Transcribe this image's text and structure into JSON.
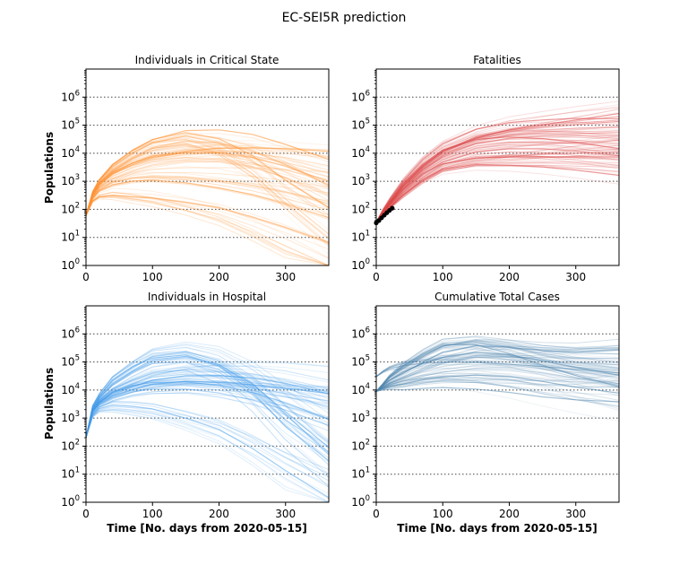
{
  "figure": {
    "title": "EC-SEI5R prediction"
  },
  "chart_data": [
    {
      "type": "line",
      "title": "Individuals in Critical State",
      "xlabel": "",
      "ylabel": "Populations",
      "xlim": [
        0,
        365
      ],
      "ylim": [
        1,
        10000000
      ],
      "yscale": "log",
      "grid": "horizontal dotted at each decade",
      "color": "#ff7f0e",
      "x_ticks": [
        "0",
        "100",
        "200",
        "300"
      ],
      "y_ticks": [
        "10^0",
        "10^1",
        "10^2",
        "10^3",
        "10^4",
        "10^5",
        "10^6"
      ],
      "x": [
        0,
        10,
        20,
        40,
        70,
        100,
        150,
        200,
        250,
        300,
        365
      ],
      "series": [
        {
          "values": [
            60,
            300,
            700,
            1500,
            3000,
            5000,
            8000,
            9000,
            7000,
            4000,
            1500
          ]
        },
        {
          "values": [
            60,
            350,
            900,
            2500,
            7000,
            15000,
            25000,
            20000,
            10000,
            3000,
            500
          ]
        },
        {
          "values": [
            60,
            250,
            500,
            900,
            1300,
            1500,
            1400,
            1100,
            800,
            500,
            250
          ]
        },
        {
          "values": [
            60,
            200,
            300,
            350,
            300,
            250,
            150,
            80,
            30,
            10,
            2
          ]
        },
        {
          "values": [
            60,
            400,
            1000,
            3000,
            9000,
            20000,
            30000,
            15000,
            3000,
            300,
            20
          ]
        },
        {
          "values": [
            60,
            300,
            700,
            1800,
            4000,
            7000,
            10000,
            12000,
            11000,
            9000,
            6000
          ]
        }
      ]
    },
    {
      "type": "line",
      "title": "Fatalities",
      "xlabel": "",
      "ylabel": "",
      "xlim": [
        0,
        365
      ],
      "ylim": [
        1,
        10000000
      ],
      "yscale": "log",
      "grid": "horizontal dotted at each decade",
      "color": "#d62728",
      "observed_color": "#000000",
      "x_ticks": [
        "0",
        "100",
        "200",
        "300"
      ],
      "y_ticks": [
        "10^0",
        "10^1",
        "10^2",
        "10^3",
        "10^4",
        "10^5",
        "10^6"
      ],
      "x": [
        0,
        10,
        20,
        40,
        70,
        100,
        150,
        200,
        250,
        300,
        365
      ],
      "series": [
        {
          "values": [
            35,
            70,
            130,
            400,
            1500,
            3500,
            6000,
            7000,
            7500,
            7500,
            7500
          ]
        },
        {
          "values": [
            35,
            80,
            160,
            600,
            3000,
            9000,
            25000,
            40000,
            50000,
            55000,
            55000
          ]
        },
        {
          "values": [
            35,
            90,
            200,
            800,
            4500,
            15000,
            45000,
            75000,
            90000,
            100000,
            100000
          ]
        },
        {
          "values": [
            35,
            75,
            140,
            500,
            2000,
            6000,
            15000,
            22000,
            25000,
            26000,
            26000
          ]
        },
        {
          "values": [
            35,
            85,
            180,
            700,
            3500,
            12000,
            35000,
            55000,
            65000,
            70000,
            70000
          ]
        },
        {
          "values": [
            35,
            70,
            120,
            350,
            1200,
            3000,
            5000,
            5500,
            6000,
            6000,
            6000
          ]
        }
      ],
      "observed": {
        "x": [
          0,
          4,
          8,
          12,
          16,
          20,
          24
        ],
        "y": [
          33,
          40,
          50,
          62,
          76,
          92,
          110
        ]
      }
    },
    {
      "type": "line",
      "title": "Individuals in Hospital",
      "xlabel": "Time [No. days from 2020-05-15]",
      "ylabel": "Populations",
      "xlim": [
        0,
        365
      ],
      "ylim": [
        1,
        10000000
      ],
      "yscale": "log",
      "grid": "horizontal dotted at each decade",
      "color": "#1e88e5",
      "x_ticks": [
        "0",
        "100",
        "200",
        "300"
      ],
      "y_ticks": [
        "10^0",
        "10^1",
        "10^2",
        "10^3",
        "10^4",
        "10^5",
        "10^6"
      ],
      "x": [
        0,
        10,
        20,
        40,
        70,
        100,
        150,
        200,
        250,
        300,
        365
      ],
      "series": [
        {
          "values": [
            200,
            1500,
            3000,
            6000,
            10000,
            13000,
            15000,
            13000,
            9000,
            5000,
            2000
          ]
        },
        {
          "values": [
            200,
            2500,
            6000,
            20000,
            60000,
            150000,
            200000,
            100000,
            20000,
            2000,
            100
          ]
        },
        {
          "values": [
            200,
            2000,
            4500,
            10000,
            20000,
            35000,
            50000,
            50000,
            40000,
            25000,
            10000
          ]
        },
        {
          "values": [
            200,
            1200,
            2000,
            2500,
            2200,
            1800,
            900,
            400,
            100,
            20,
            3
          ]
        },
        {
          "values": [
            200,
            2200,
            5000,
            15000,
            40000,
            80000,
            100000,
            40000,
            5000,
            300,
            20
          ]
        },
        {
          "values": [
            200,
            1800,
            3500,
            7000,
            12000,
            18000,
            22000,
            20000,
            16000,
            12000,
            8000
          ]
        }
      ]
    },
    {
      "type": "line",
      "title": "Cumulative Total Cases",
      "xlabel": "Time [No. days from 2020-05-15]",
      "ylabel": "",
      "xlim": [
        0,
        365
      ],
      "ylim": [
        1,
        10000000
      ],
      "yscale": "log",
      "grid": "horizontal dotted at each decade",
      "color": "#2f6f9f",
      "x_ticks": [
        "0",
        "100",
        "200",
        "300"
      ],
      "y_ticks": [
        "10^0",
        "10^1",
        "10^2",
        "10^3",
        "10^4",
        "10^5",
        "10^6"
      ],
      "x": [
        0,
        10,
        20,
        40,
        70,
        100,
        150,
        200,
        250,
        300,
        365
      ],
      "series": [
        {
          "values": [
            9000,
            14000,
            20000,
            35000,
            70000,
            120000,
            200000,
            180000,
            120000,
            80000,
            50000
          ]
        },
        {
          "values": [
            9000,
            16000,
            30000,
            70000,
            200000,
            450000,
            500000,
            300000,
            150000,
            90000,
            60000
          ]
        },
        {
          "values": [
            9000,
            12000,
            15000,
            20000,
            30000,
            40000,
            50000,
            45000,
            30000,
            18000,
            10000
          ]
        },
        {
          "values": [
            30000,
            45000,
            60000,
            80000,
            100000,
            110000,
            110000,
            100000,
            90000,
            80000,
            70000
          ]
        },
        {
          "values": [
            9000,
            11000,
            13000,
            15000,
            18000,
            20000,
            18000,
            14000,
            10000,
            8000,
            7000
          ]
        },
        {
          "values": [
            9000,
            15000,
            25000,
            50000,
            120000,
            250000,
            350000,
            250000,
            150000,
            100000,
            80000
          ]
        }
      ]
    }
  ]
}
